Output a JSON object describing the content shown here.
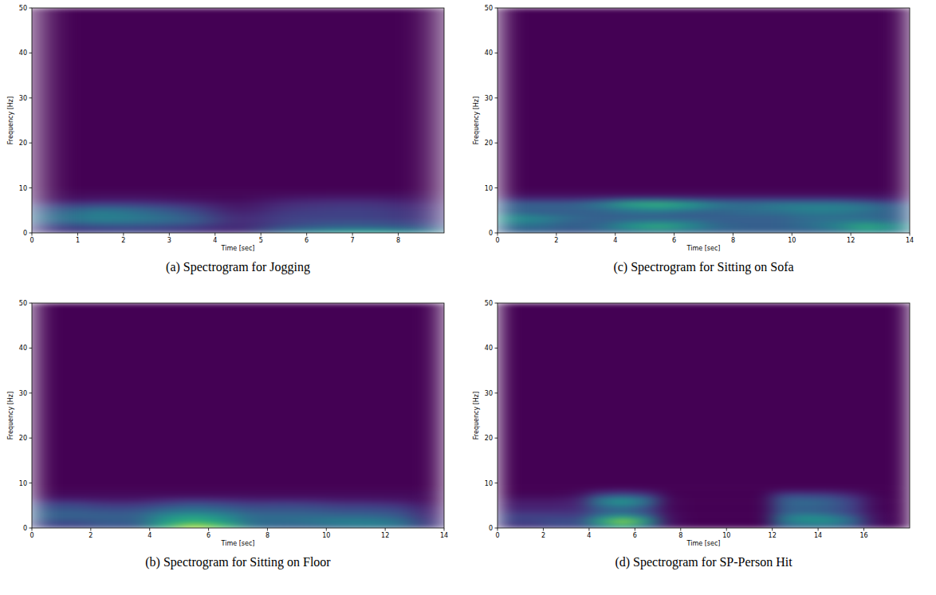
{
  "chart_data": [
    {
      "type": "heatmap",
      "title": "(a) Spectrogram for Jogging",
      "x_label": "Time [sec]",
      "y_label": "Frequency [Hz]",
      "xlim": [
        0,
        9
      ],
      "ylim": [
        0,
        50
      ],
      "xticks": [
        0,
        1,
        2,
        3,
        4,
        5,
        6,
        7,
        8
      ],
      "yticks": [
        0,
        10,
        20,
        30,
        40,
        50
      ],
      "zlim": [
        0,
        1
      ],
      "x_bins": [
        0,
        1,
        2,
        3,
        4,
        5,
        6,
        7,
        8,
        9
      ],
      "y_bins": [
        0,
        1,
        2,
        3,
        4,
        5,
        6,
        7,
        8,
        9,
        10,
        50
      ],
      "cells": [
        [
          0.15,
          0.2,
          0.2,
          0.15,
          0.1,
          0.35,
          0.5,
          0.55,
          0.4
        ],
        [
          0.2,
          0.25,
          0.25,
          0.2,
          0.1,
          0.25,
          0.3,
          0.3,
          0.25
        ],
        [
          0.3,
          0.4,
          0.35,
          0.3,
          0.1,
          0.2,
          0.25,
          0.25,
          0.2
        ],
        [
          0.35,
          0.45,
          0.4,
          0.3,
          0.1,
          0.2,
          0.2,
          0.2,
          0.15
        ],
        [
          0.3,
          0.45,
          0.35,
          0.25,
          0.08,
          0.18,
          0.2,
          0.2,
          0.15
        ],
        [
          0.25,
          0.35,
          0.3,
          0.2,
          0.05,
          0.15,
          0.18,
          0.18,
          0.12
        ],
        [
          0.15,
          0.2,
          0.18,
          0.12,
          0.04,
          0.12,
          0.15,
          0.15,
          0.1
        ],
        [
          0.05,
          0.08,
          0.08,
          0.05,
          0.02,
          0.08,
          0.1,
          0.1,
          0.06
        ],
        [
          0.02,
          0.03,
          0.03,
          0.02,
          0.01,
          0.03,
          0.04,
          0.04,
          0.03
        ],
        [
          0.01,
          0.01,
          0.01,
          0.01,
          0.01,
          0.01,
          0.01,
          0.01,
          0.01
        ],
        [
          0,
          0,
          0,
          0,
          0,
          0,
          0,
          0,
          0
        ]
      ]
    },
    {
      "type": "heatmap",
      "title": "(b) Spectrogram for Sitting on Floor",
      "x_label": "Time [sec]",
      "y_label": "Frequency [Hz]",
      "xlim": [
        0,
        14
      ],
      "ylim": [
        0,
        50
      ],
      "xticks": [
        0,
        2,
        4,
        6,
        8,
        10,
        12,
        14
      ],
      "yticks": [
        0,
        10,
        20,
        30,
        40,
        50
      ],
      "zlim": [
        0,
        1
      ],
      "x_bins": [
        0,
        1,
        2,
        3,
        4,
        5,
        6,
        7,
        8,
        9,
        10,
        11,
        12,
        13,
        14
      ],
      "y_bins": [
        0,
        1,
        2,
        3,
        4,
        5,
        6,
        7,
        8,
        9,
        10,
        50
      ],
      "cells": [
        [
          0.2,
          0.2,
          0.25,
          0.25,
          0.6,
          0.9,
          0.7,
          0.35,
          0.3,
          0.3,
          0.35,
          0.4,
          0.35,
          0.15
        ],
        [
          0.25,
          0.25,
          0.3,
          0.3,
          0.55,
          0.65,
          0.55,
          0.35,
          0.35,
          0.4,
          0.45,
          0.45,
          0.4,
          0.15
        ],
        [
          0.3,
          0.3,
          0.3,
          0.3,
          0.5,
          0.6,
          0.5,
          0.35,
          0.35,
          0.35,
          0.35,
          0.35,
          0.3,
          0.12
        ],
        [
          0.3,
          0.3,
          0.28,
          0.28,
          0.4,
          0.45,
          0.4,
          0.3,
          0.3,
          0.3,
          0.28,
          0.28,
          0.25,
          0.1
        ],
        [
          0.25,
          0.25,
          0.22,
          0.22,
          0.3,
          0.35,
          0.3,
          0.25,
          0.25,
          0.25,
          0.22,
          0.22,
          0.2,
          0.08
        ],
        [
          0.2,
          0.2,
          0.15,
          0.15,
          0.2,
          0.25,
          0.22,
          0.18,
          0.2,
          0.18,
          0.15,
          0.15,
          0.12,
          0.05
        ],
        [
          0.08,
          0.08,
          0.06,
          0.06,
          0.1,
          0.12,
          0.1,
          0.08,
          0.08,
          0.08,
          0.06,
          0.06,
          0.05,
          0.02
        ],
        [
          0.03,
          0.03,
          0.03,
          0.03,
          0.03,
          0.03,
          0.03,
          0.03,
          0.03,
          0.03,
          0.03,
          0.03,
          0.03,
          0.03
        ],
        [
          0.01,
          0.01,
          0.01,
          0.01,
          0.01,
          0.01,
          0.01,
          0.01,
          0.01,
          0.01,
          0.01,
          0.01,
          0.01,
          0.01
        ],
        [
          0,
          0,
          0,
          0,
          0,
          0,
          0,
          0,
          0,
          0,
          0,
          0,
          0,
          0
        ],
        [
          0,
          0,
          0,
          0,
          0,
          0,
          0,
          0,
          0,
          0,
          0,
          0,
          0,
          0
        ]
      ]
    },
    {
      "type": "heatmap",
      "title": "(c) Spectrogram for Sitting on Sofa",
      "x_label": "Time [sec]",
      "y_label": "Frequency [Hz]",
      "xlim": [
        0,
        14
      ],
      "ylim": [
        0,
        50
      ],
      "xticks": [
        0,
        2,
        4,
        6,
        8,
        10,
        12,
        14
      ],
      "yticks": [
        0,
        10,
        20,
        30,
        40,
        50
      ],
      "zlim": [
        0,
        1
      ],
      "x_bins": [
        0,
        1,
        2,
        3,
        4,
        5,
        6,
        7,
        8,
        9,
        10,
        11,
        12,
        13,
        14
      ],
      "y_bins": [
        0,
        1,
        2,
        3,
        4,
        5,
        6,
        7,
        8,
        9,
        10,
        50
      ],
      "cells": [
        [
          0.3,
          0.3,
          0.25,
          0.3,
          0.35,
          0.4,
          0.35,
          0.3,
          0.3,
          0.3,
          0.3,
          0.35,
          0.5,
          0.4
        ],
        [
          0.35,
          0.35,
          0.3,
          0.35,
          0.55,
          0.65,
          0.5,
          0.35,
          0.3,
          0.3,
          0.35,
          0.45,
          0.65,
          0.5
        ],
        [
          0.45,
          0.4,
          0.3,
          0.3,
          0.4,
          0.45,
          0.4,
          0.3,
          0.3,
          0.3,
          0.35,
          0.4,
          0.45,
          0.35
        ],
        [
          0.5,
          0.45,
          0.35,
          0.3,
          0.3,
          0.3,
          0.3,
          0.3,
          0.3,
          0.3,
          0.35,
          0.35,
          0.35,
          0.3
        ],
        [
          0.35,
          0.3,
          0.3,
          0.3,
          0.35,
          0.35,
          0.3,
          0.3,
          0.35,
          0.35,
          0.4,
          0.4,
          0.35,
          0.3
        ],
        [
          0.3,
          0.3,
          0.3,
          0.35,
          0.45,
          0.5,
          0.45,
          0.35,
          0.35,
          0.4,
          0.45,
          0.45,
          0.4,
          0.3
        ],
        [
          0.3,
          0.3,
          0.3,
          0.4,
          0.6,
          0.65,
          0.55,
          0.4,
          0.35,
          0.4,
          0.4,
          0.4,
          0.35,
          0.25
        ],
        [
          0.15,
          0.15,
          0.15,
          0.2,
          0.3,
          0.3,
          0.25,
          0.2,
          0.2,
          0.2,
          0.2,
          0.2,
          0.15,
          0.1
        ],
        [
          0.04,
          0.04,
          0.04,
          0.04,
          0.04,
          0.04,
          0.04,
          0.04,
          0.04,
          0.04,
          0.04,
          0.04,
          0.04,
          0.04
        ],
        [
          0.01,
          0.01,
          0.01,
          0.01,
          0.01,
          0.01,
          0.01,
          0.01,
          0.01,
          0.01,
          0.01,
          0.01,
          0.01,
          0.01
        ],
        [
          0,
          0,
          0,
          0,
          0,
          0,
          0,
          0,
          0,
          0,
          0,
          0,
          0,
          0
        ]
      ]
    },
    {
      "type": "heatmap",
      "title": "(d) Spectrogram for SP-Person Hit",
      "x_label": "Time [sec]",
      "y_label": "Frequency [Hz]",
      "xlim": [
        0,
        18
      ],
      "ylim": [
        0,
        50
      ],
      "xticks": [
        0,
        2,
        4,
        6,
        8,
        10,
        12,
        14,
        16
      ],
      "yticks": [
        0,
        10,
        20,
        30,
        40,
        50
      ],
      "zlim": [
        0,
        1
      ],
      "x_bins": [
        0,
        1,
        2,
        3,
        4,
        5,
        6,
        7,
        8,
        9,
        10,
        11,
        12,
        13,
        14,
        15,
        16,
        17,
        18
      ],
      "y_bins": [
        0,
        1,
        2,
        3,
        4,
        5,
        6,
        7,
        8,
        9,
        10,
        50
      ],
      "cells": [
        [
          0.15,
          0.15,
          0.2,
          0.2,
          0.4,
          0.6,
          0.35,
          0.05,
          0,
          0,
          0,
          0,
          0.3,
          0.35,
          0.35,
          0.25,
          0.05,
          0
        ],
        [
          0.2,
          0.2,
          0.25,
          0.25,
          0.6,
          0.85,
          0.55,
          0.05,
          0,
          0,
          0,
          0,
          0.4,
          0.5,
          0.5,
          0.35,
          0.05,
          0
        ],
        [
          0.2,
          0.2,
          0.2,
          0.2,
          0.45,
          0.6,
          0.4,
          0.04,
          0,
          0,
          0,
          0,
          0.4,
          0.5,
          0.45,
          0.3,
          0.04,
          0
        ],
        [
          0.15,
          0.15,
          0.15,
          0.15,
          0.3,
          0.35,
          0.25,
          0.03,
          0,
          0,
          0,
          0,
          0.3,
          0.35,
          0.3,
          0.2,
          0.03,
          0
        ],
        [
          0.1,
          0.1,
          0.1,
          0.12,
          0.3,
          0.35,
          0.25,
          0.02,
          0,
          0,
          0,
          0,
          0.3,
          0.3,
          0.28,
          0.2,
          0.02,
          0
        ],
        [
          0.08,
          0.08,
          0.08,
          0.1,
          0.4,
          0.5,
          0.35,
          0.02,
          0,
          0,
          0,
          0,
          0.3,
          0.35,
          0.3,
          0.2,
          0.02,
          0
        ],
        [
          0.05,
          0.05,
          0.05,
          0.08,
          0.4,
          0.5,
          0.35,
          0.02,
          0,
          0,
          0,
          0,
          0.3,
          0.3,
          0.28,
          0.18,
          0.02,
          0
        ],
        [
          0.02,
          0.02,
          0.02,
          0.04,
          0.2,
          0.25,
          0.18,
          0.01,
          0,
          0,
          0,
          0,
          0.2,
          0.2,
          0.18,
          0.1,
          0.01,
          0
        ],
        [
          0,
          0,
          0,
          0.01,
          0.06,
          0.08,
          0.05,
          0,
          0,
          0,
          0,
          0,
          0.05,
          0.05,
          0.05,
          0.03,
          0,
          0
        ],
        [
          0,
          0,
          0,
          0,
          0,
          0,
          0,
          0,
          0,
          0,
          0,
          0,
          0,
          0,
          0,
          0,
          0,
          0
        ],
        [
          0,
          0,
          0,
          0,
          0,
          0,
          0,
          0,
          0,
          0,
          0,
          0,
          0,
          0,
          0,
          0,
          0,
          0
        ]
      ]
    }
  ]
}
